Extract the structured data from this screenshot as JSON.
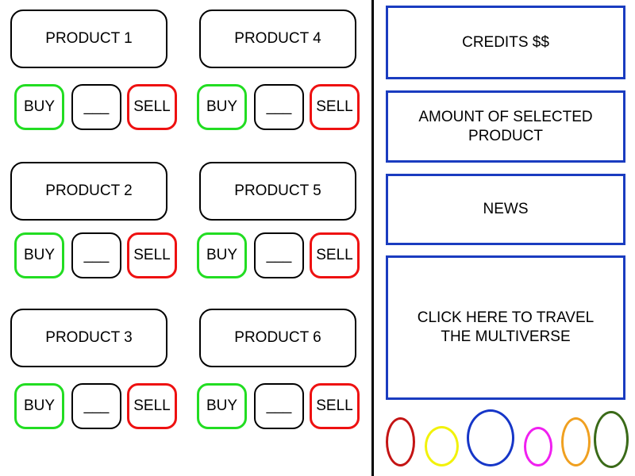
{
  "products": [
    {
      "name": "PRODUCT 1",
      "buy": "BUY",
      "qty": "___",
      "sell": "SELL"
    },
    {
      "name": "PRODUCT 2",
      "buy": "BUY",
      "qty": "___",
      "sell": "SELL"
    },
    {
      "name": "PRODUCT 3",
      "buy": "BUY",
      "qty": "___",
      "sell": "SELL"
    },
    {
      "name": "PRODUCT 4",
      "buy": "BUY",
      "qty": "___",
      "sell": "SELL"
    },
    {
      "name": "PRODUCT 5",
      "buy": "BUY",
      "qty": "___",
      "sell": "SELL"
    },
    {
      "name": "PRODUCT 6",
      "buy": "BUY",
      "qty": "___",
      "sell": "SELL"
    }
  ],
  "panels": {
    "credits": "CREDITS $$",
    "amount": "AMOUNT OF SELECTED\nPRODUCT",
    "news": "NEWS",
    "travel": "CLICK HERE TO TRAVEL\nTHE MULTIVERSE"
  },
  "colors": {
    "buy": "#22dd22",
    "sell": "#ee1111",
    "panel_border": "#1a3cc0",
    "multiverse": [
      "#c41414",
      "#f2f20a",
      "#1636c8",
      "#f020f0",
      "#f0a020",
      "#3a6a18"
    ]
  }
}
